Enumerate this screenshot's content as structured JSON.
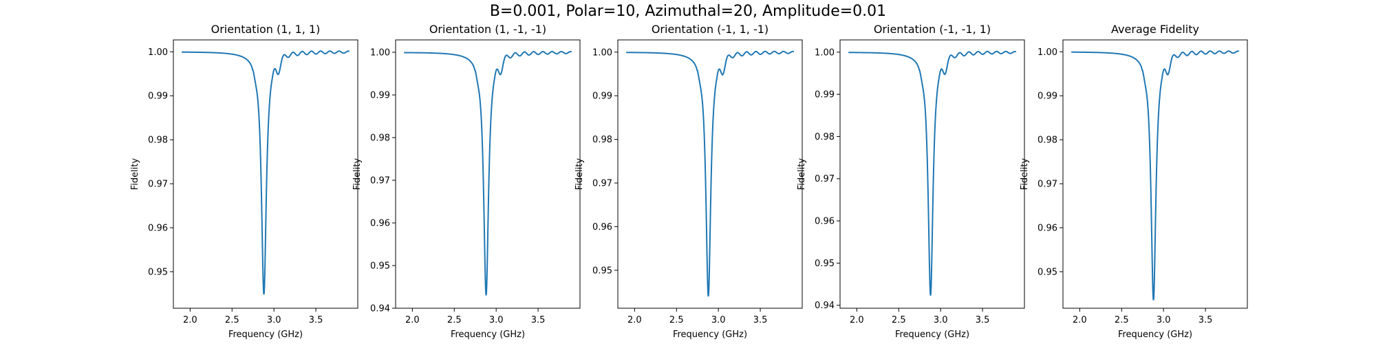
{
  "figure": {
    "suptitle": "B=0.001, Polar=10, Azimuthal=20, Amplitude=0.01"
  },
  "chart_data": [
    {
      "type": "line",
      "title": "Orientation (1, 1, 1)",
      "xlabel": "Frequency (GHz)",
      "ylabel": "Fidelity",
      "xlim": [
        1.8,
        4.0
      ],
      "ylim": [
        0.9417,
        1.0027
      ],
      "xticks": [
        2.0,
        2.5,
        3.0,
        3.5
      ],
      "yticks": [
        0.95,
        0.96,
        0.97,
        0.98,
        0.99,
        1.0
      ],
      "series": [
        {
          "color": "#1f77b4",
          "min_x": 2.88,
          "min_y": 0.9448
        }
      ]
    },
    {
      "type": "line",
      "title": "Orientation (1, -1, -1)",
      "xlabel": "Frequency (GHz)",
      "ylabel": "Fidelity",
      "xlim": [
        1.8,
        4.0
      ],
      "ylim": [
        0.94,
        1.0029
      ],
      "xticks": [
        2.0,
        2.5,
        3.0,
        3.5
      ],
      "yticks": [
        0.94,
        0.95,
        0.96,
        0.97,
        0.98,
        0.99,
        1.0
      ],
      "series": [
        {
          "color": "#1f77b4",
          "min_x": 2.88,
          "min_y": 0.943
        }
      ]
    },
    {
      "type": "line",
      "title": "Orientation (-1, 1, -1)",
      "xlabel": "Frequency (GHz)",
      "ylabel": "Fidelity",
      "xlim": [
        1.8,
        4.0
      ],
      "ylim": [
        0.9413,
        1.0028
      ],
      "xticks": [
        2.0,
        2.5,
        3.0,
        3.5
      ],
      "yticks": [
        0.95,
        0.96,
        0.97,
        0.98,
        0.99,
        1.0
      ],
      "series": [
        {
          "color": "#1f77b4",
          "min_x": 2.88,
          "min_y": 0.944
        }
      ]
    },
    {
      "type": "line",
      "title": "Orientation (-1, -1, 1)",
      "xlabel": "Frequency (GHz)",
      "ylabel": "Fidelity",
      "xlim": [
        1.8,
        4.0
      ],
      "ylim": [
        0.9393,
        1.0029
      ],
      "xticks": [
        2.0,
        2.5,
        3.0,
        3.5
      ],
      "yticks": [
        0.94,
        0.95,
        0.96,
        0.97,
        0.98,
        0.99,
        1.0
      ],
      "series": [
        {
          "color": "#1f77b4",
          "min_x": 2.88,
          "min_y": 0.9423
        }
      ]
    },
    {
      "type": "line",
      "title": "Average Fidelity",
      "xlabel": "Frequency (GHz)",
      "ylabel": "Fidelity",
      "xlim": [
        1.8,
        4.0
      ],
      "ylim": [
        0.9417,
        1.0027
      ],
      "xticks": [
        2.0,
        2.5,
        3.0,
        3.5
      ],
      "yticks": [
        0.95,
        0.96,
        0.97,
        0.98,
        0.99,
        1.0
      ],
      "series": [
        {
          "color": "#1f77b4",
          "min_x": 2.88,
          "min_y": 0.9435
        }
      ]
    }
  ]
}
